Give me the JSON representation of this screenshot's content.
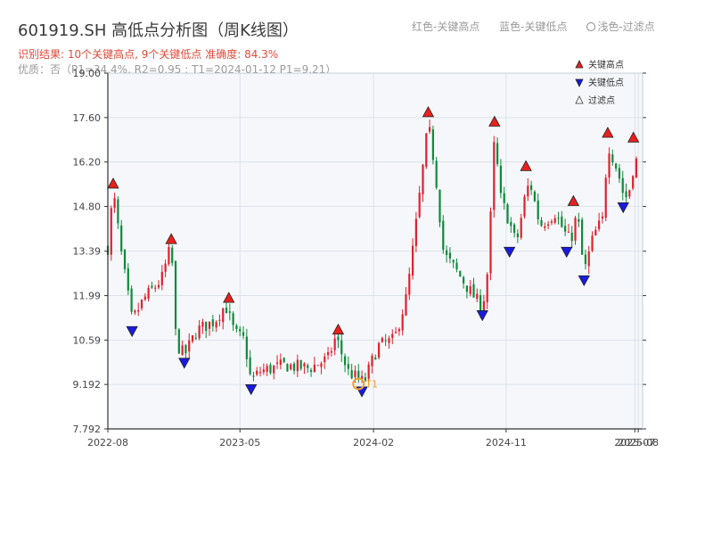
{
  "header": {
    "title": "601919.SH 高低点分析图（周K线图）",
    "legend_red": "红色-关键高点",
    "legend_blue": "蓝色-关键低点",
    "legend_light": "浅色-过滤点",
    "result_line": "识别结果: 10个关键高点, 9个关键低点   准确度: 84.3%",
    "quality_line": "优质：否（P1=34.4%, R2=0.95 ; T1=2024-01-12 P1=9.21）"
  },
  "chart_data": {
    "type": "candlestick",
    "ylim": [
      7.792,
      19.0
    ],
    "yticks": [
      7.792,
      9.192,
      10.59,
      11.99,
      13.39,
      14.8,
      16.2,
      17.6,
      19.0
    ],
    "ytick_labels": [
      "7.792",
      "9.192",
      "10.59",
      "11.99",
      "13.39",
      "14.80",
      "16.20",
      "17.60",
      "19.00"
    ],
    "x_range": [
      "2022-08-01",
      "2025-08-10"
    ],
    "xticks": [
      {
        "date": "2022-08-01",
        "label": "2022-08"
      },
      {
        "date": "2023-05-01",
        "label": "2023-05"
      },
      {
        "date": "2024-02-01",
        "label": "2024-02"
      },
      {
        "date": "2024-11-01",
        "label": "2024-11"
      },
      {
        "date": "2025-07-25",
        "label": "2025-07"
      },
      {
        "date": "2025-08-01",
        "label": "2025-08"
      }
    ],
    "colors": {
      "up": "#e0212d",
      "down": "#0e8a3a",
      "high_marker": "#e8201c",
      "low_marker": "#1a1ae0",
      "t1_marker": "#f0a030",
      "grid": "#d8dde6",
      "plot_bg": "#f5f7fa"
    },
    "price_path": [
      [
        "2022-08-01",
        13.5
      ],
      [
        "2022-08-12",
        15.3
      ],
      [
        "2022-08-29",
        13.3
      ],
      [
        "2022-09-20",
        11.2
      ],
      [
        "2022-10-15",
        11.9
      ],
      [
        "2022-11-20",
        12.5
      ],
      [
        "2022-12-10",
        13.6
      ],
      [
        "2022-12-20",
        10.5
      ],
      [
        "2023-01-06",
        10.1
      ],
      [
        "2023-02-01",
        10.9
      ],
      [
        "2023-03-10",
        11.2
      ],
      [
        "2023-04-01",
        11.7
      ],
      [
        "2023-04-20",
        10.8
      ],
      [
        "2023-05-10",
        10.6
      ],
      [
        "2023-05-24",
        9.27
      ],
      [
        "2023-06-10",
        9.6
      ],
      [
        "2023-08-01",
        9.8
      ],
      [
        "2023-09-20",
        9.7
      ],
      [
        "2023-10-30",
        10.0
      ],
      [
        "2023-11-15",
        10.7
      ],
      [
        "2023-12-10",
        9.6
      ],
      [
        "2024-01-12",
        9.25
      ],
      [
        "2024-02-10",
        10.4
      ],
      [
        "2024-03-15",
        10.6
      ],
      [
        "2024-04-10",
        12.0
      ],
      [
        "2024-05-01",
        14.5
      ],
      [
        "2024-05-24",
        17.4
      ],
      [
        "2024-06-07",
        16.0
      ],
      [
        "2024-06-25",
        13.3
      ],
      [
        "2024-07-20",
        12.8
      ],
      [
        "2024-08-20",
        12.1
      ],
      [
        "2024-09-13",
        11.6
      ],
      [
        "2024-09-25",
        12.9
      ],
      [
        "2024-10-08",
        17.0
      ],
      [
        "2024-10-20",
        15.1
      ],
      [
        "2024-11-08",
        14.3
      ],
      [
        "2024-11-22",
        13.6
      ],
      [
        "2024-12-10",
        15.1
      ],
      [
        "2024-12-20",
        15.6
      ],
      [
        "2025-01-10",
        14.2
      ],
      [
        "2025-02-10",
        14.6
      ],
      [
        "2025-03-01",
        14.0
      ],
      [
        "2025-03-14",
        13.7
      ],
      [
        "2025-03-28",
        14.6
      ],
      [
        "2025-04-11",
        12.7
      ],
      [
        "2025-05-01",
        13.9
      ],
      [
        "2025-05-20",
        14.4
      ],
      [
        "2025-05-30",
        16.8
      ],
      [
        "2025-06-20",
        15.9
      ],
      [
        "2025-07-04",
        15.0
      ],
      [
        "2025-07-18",
        15.5
      ],
      [
        "2025-07-25",
        16.6
      ],
      [
        "2025-08-03",
        15.5
      ]
    ],
    "key_highs": [
      {
        "date": "2022-08-12",
        "price": 15.35
      },
      {
        "date": "2022-12-10",
        "price": 13.6
      },
      {
        "date": "2023-04-08",
        "price": 11.75
      },
      {
        "date": "2023-11-20",
        "price": 10.75
      },
      {
        "date": "2024-05-24",
        "price": 17.6
      },
      {
        "date": "2024-10-08",
        "price": 17.3
      },
      {
        "date": "2024-12-12",
        "price": 15.9
      },
      {
        "date": "2025-03-20",
        "price": 14.8
      },
      {
        "date": "2025-05-30",
        "price": 16.95
      },
      {
        "date": "2025-07-22",
        "price": 16.8
      }
    ],
    "key_lows": [
      {
        "date": "2022-09-20",
        "price": 11.1
      },
      {
        "date": "2023-01-06",
        "price": 10.1
      },
      {
        "date": "2023-05-24",
        "price": 9.27
      },
      {
        "date": "2024-01-08",
        "price": 9.2
      },
      {
        "date": "2024-09-13",
        "price": 11.6
      },
      {
        "date": "2024-11-08",
        "price": 13.6
      },
      {
        "date": "2025-03-06",
        "price": 13.6
      },
      {
        "date": "2025-04-11",
        "price": 12.7
      },
      {
        "date": "2025-07-01",
        "price": 15.0
      }
    ],
    "t1_point": {
      "date": "2024-01-12",
      "price": 9.21,
      "label": "T1"
    },
    "legend": [
      {
        "label": "关键高点",
        "marker": "triangle-up",
        "color": "#e8201c"
      },
      {
        "label": "关键低点",
        "marker": "triangle-down",
        "color": "#1a1ae0"
      },
      {
        "label": "过滤点",
        "marker": "triangle-up-hollow",
        "color": "#333333"
      }
    ]
  }
}
